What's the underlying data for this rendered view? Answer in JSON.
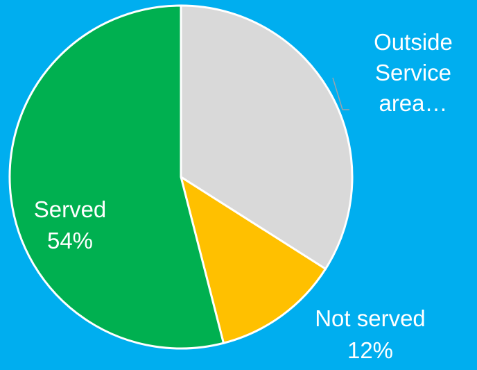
{
  "chart_data": {
    "type": "pie",
    "background_color": "#00AEEF",
    "start_angle_deg": 0,
    "direction": "clockwise",
    "slices": [
      {
        "key": "outside",
        "label_lines": [
          "Outside",
          "Service",
          "area…"
        ],
        "value": 34,
        "color": "#D9D9D9"
      },
      {
        "key": "not-served",
        "label_lines": [
          "Not served",
          "12%"
        ],
        "value": 12,
        "color": "#FFC000"
      },
      {
        "key": "served",
        "label_lines": [
          "Served",
          "54%"
        ],
        "value": 54,
        "color": "#00B050"
      }
    ],
    "legend": "none"
  }
}
